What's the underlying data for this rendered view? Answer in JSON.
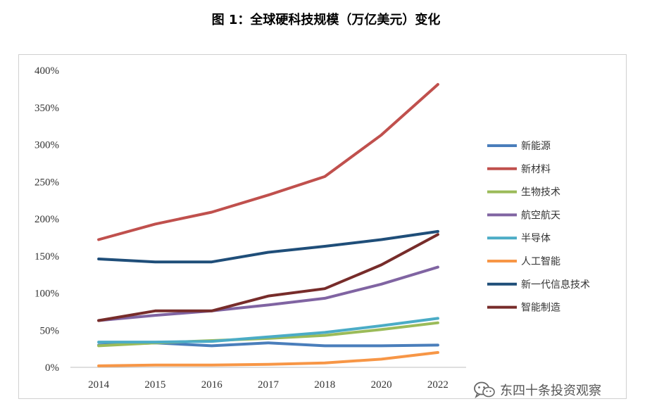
{
  "chart_data": {
    "type": "line",
    "title": "图 1：全球硬科技规模（万亿美元）变化",
    "categories": [
      "2014",
      "2015",
      "2016",
      "2017",
      "2018",
      "2020",
      "2022"
    ],
    "y_ticks": [
      "0%",
      "50%",
      "100%",
      "150%",
      "200%",
      "250%",
      "300%",
      "350%",
      "400%"
    ],
    "ylim": [
      0,
      400
    ],
    "legend_position": "right",
    "series": [
      {
        "name": "新能源",
        "color": "#4a7ebb",
        "values": [
          30,
          33,
          29,
          33,
          29,
          29,
          30
        ]
      },
      {
        "name": "新材料",
        "color": "#c0504d",
        "values": [
          172,
          193,
          209,
          232,
          257,
          313,
          381
        ]
      },
      {
        "name": "生物技术",
        "color": "#9bbb59",
        "values": [
          29,
          33,
          36,
          39,
          43,
          51,
          60
        ]
      },
      {
        "name": "航空航天",
        "color": "#8064a2",
        "values": [
          63,
          70,
          76,
          84,
          93,
          112,
          135
        ]
      },
      {
        "name": "半导体",
        "color": "#4bacc6",
        "values": [
          34,
          34,
          35,
          41,
          47,
          56,
          66
        ]
      },
      {
        "name": "人工智能",
        "color": "#f79646",
        "values": [
          2,
          3,
          3,
          4,
          6,
          11,
          20
        ]
      },
      {
        "name": "新一代信息技术",
        "color": "#1f4e79",
        "values": [
          146,
          142,
          142,
          155,
          163,
          172,
          183
        ]
      },
      {
        "name": "智能制造",
        "color": "#772c2a",
        "values": [
          63,
          76,
          76,
          96,
          106,
          138,
          179
        ]
      }
    ]
  },
  "watermark": {
    "icon": "wechat-icon",
    "text": "东四十条投资观察"
  }
}
